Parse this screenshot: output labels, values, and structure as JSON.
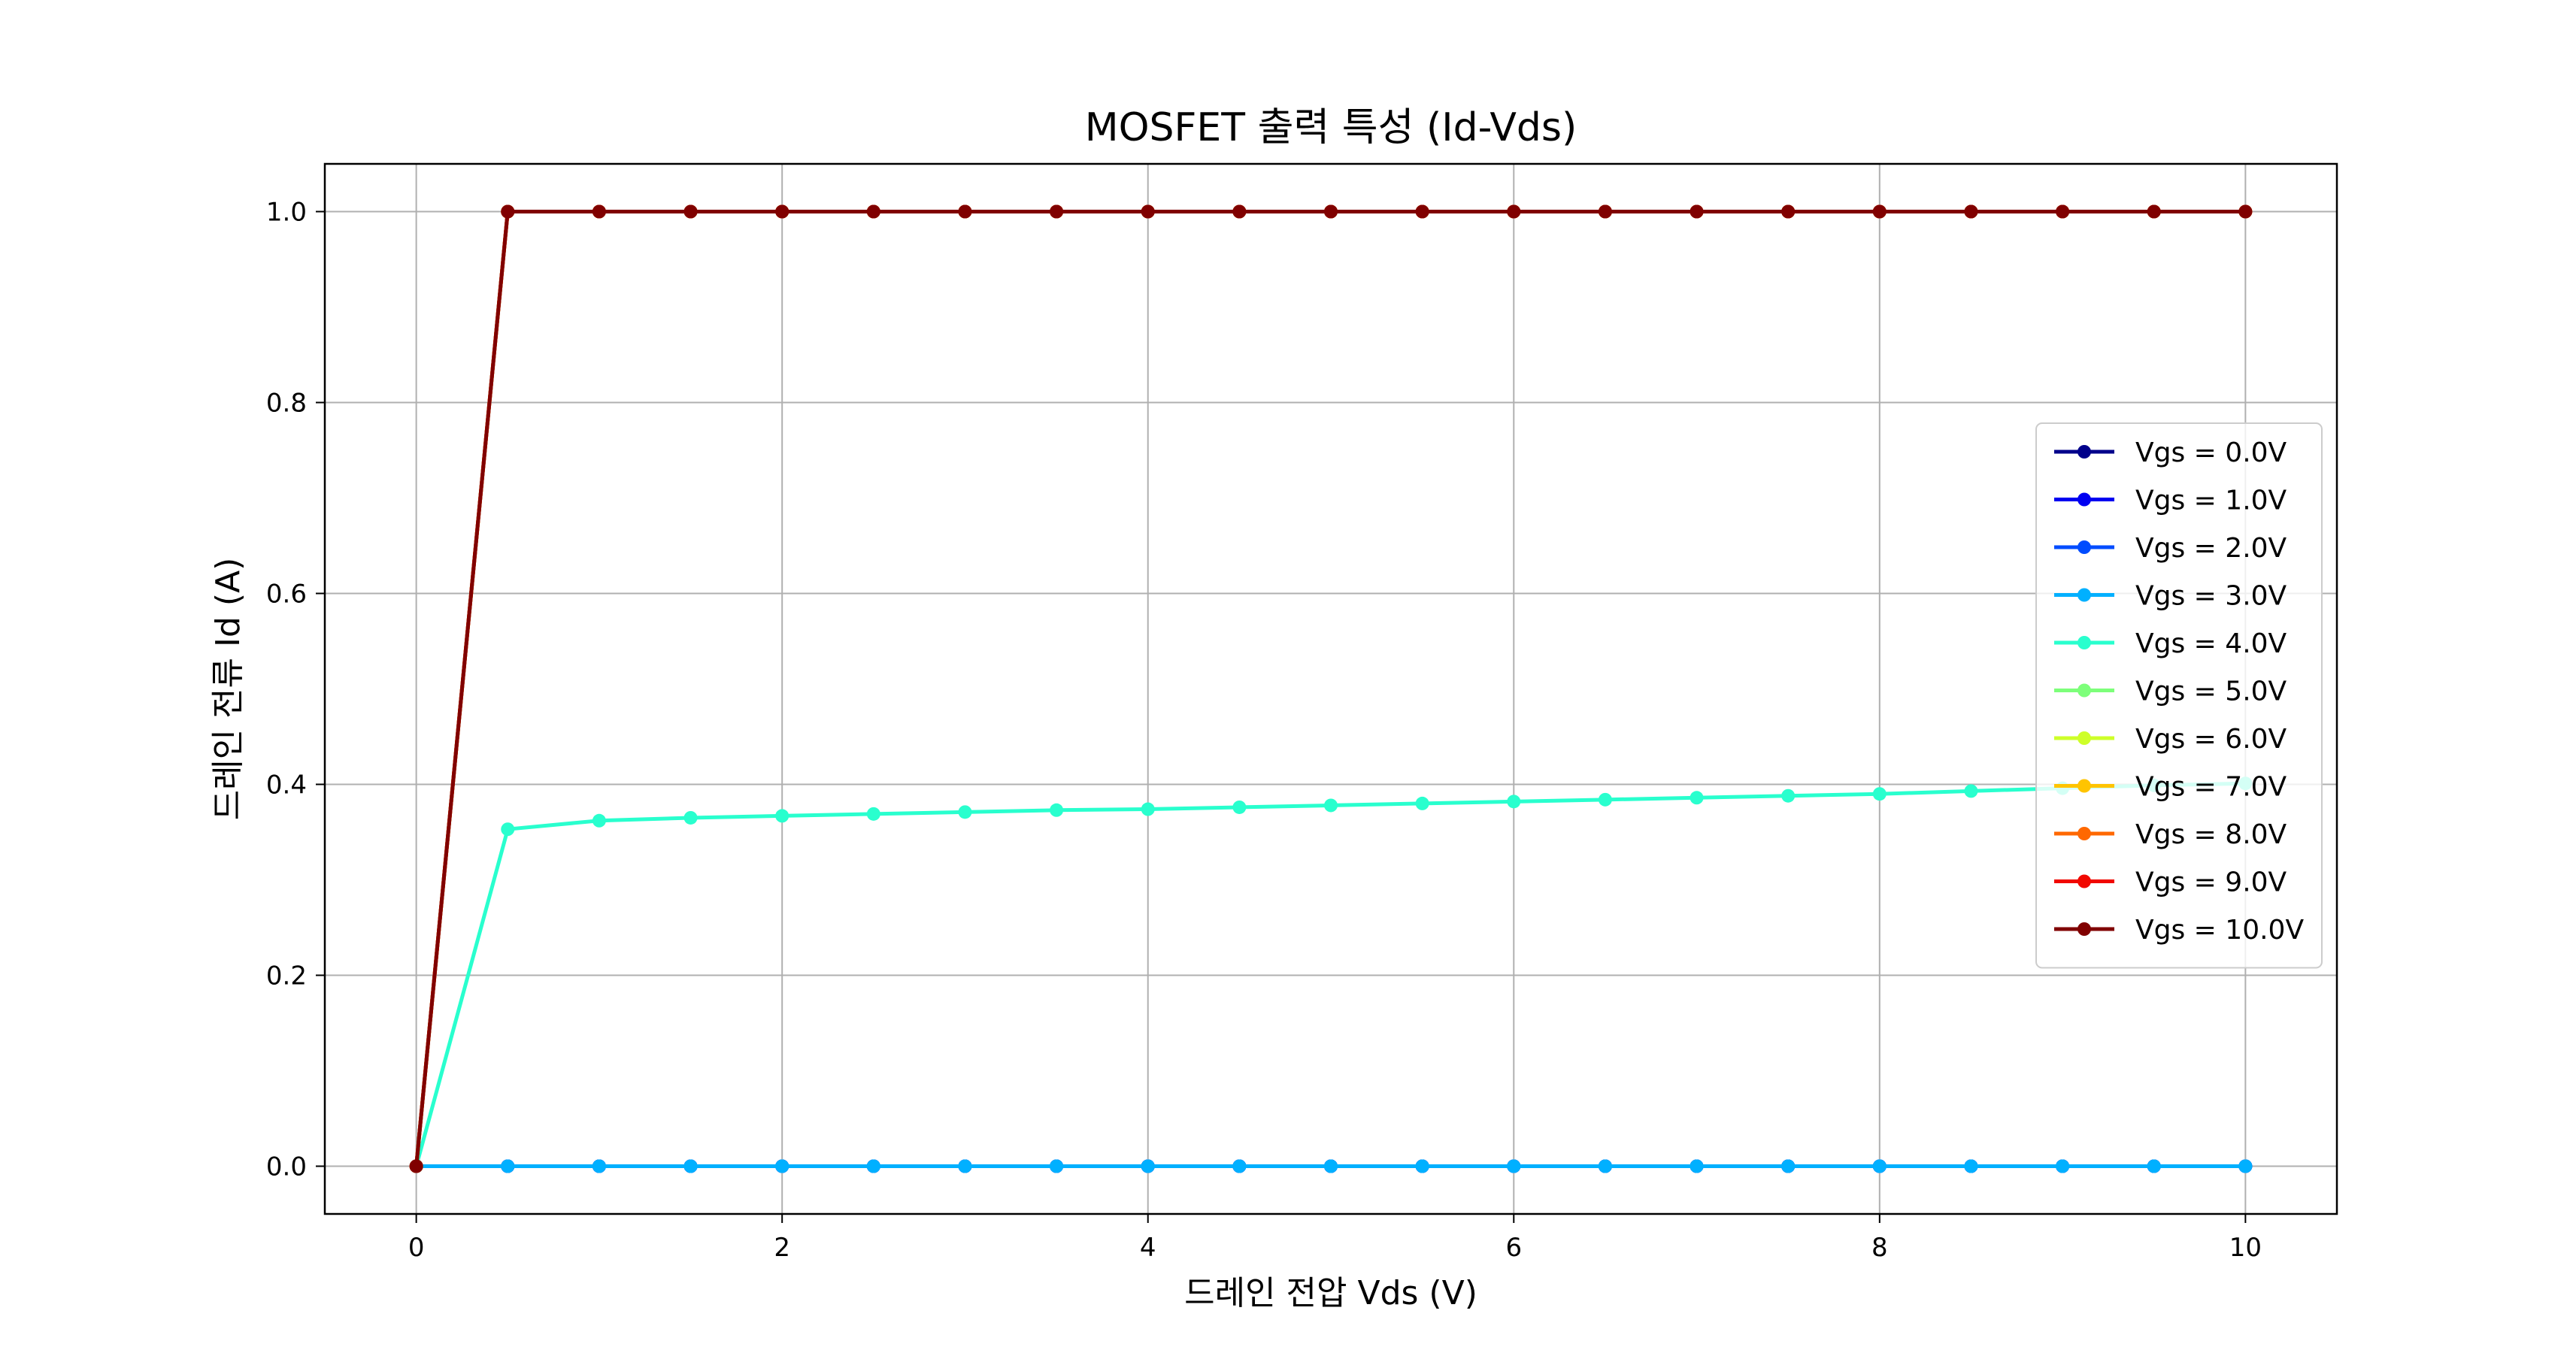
{
  "chart_data": {
    "type": "line",
    "title": "MOSFET 출력 특성 (Id-Vds)",
    "xlabel": "드레인 전압 Vds (V)",
    "ylabel": "드레인 전류 Id (A)",
    "xlim": [
      -0.5,
      10.5
    ],
    "ylim": [
      -0.05,
      1.05
    ],
    "xticks": [
      0,
      2,
      4,
      6,
      8,
      10
    ],
    "yticks": [
      0.0,
      0.2,
      0.4,
      0.6,
      0.8,
      1.0
    ],
    "xtick_labels": [
      "0",
      "2",
      "4",
      "6",
      "8",
      "10"
    ],
    "ytick_labels": [
      "0.0",
      "0.2",
      "0.4",
      "0.6",
      "0.8",
      "1.0"
    ],
    "grid": true,
    "legend_position": "center-right",
    "x": [
      0,
      0.5,
      1,
      1.5,
      2,
      2.5,
      3,
      3.5,
      4,
      4.5,
      5,
      5.5,
      6,
      6.5,
      7,
      7.5,
      8,
      8.5,
      9,
      9.5,
      10
    ],
    "series": [
      {
        "name": "Vgs = 0.0V",
        "color": "#00008b",
        "values": [
          0,
          0,
          0,
          0,
          0,
          0,
          0,
          0,
          0,
          0,
          0,
          0,
          0,
          0,
          0,
          0,
          0,
          0,
          0,
          0,
          0
        ]
      },
      {
        "name": "Vgs = 1.0V",
        "color": "#0000f1",
        "values": [
          0,
          0,
          0,
          0,
          0,
          0,
          0,
          0,
          0,
          0,
          0,
          0,
          0,
          0,
          0,
          0,
          0,
          0,
          0,
          0,
          0
        ]
      },
      {
        "name": "Vgs = 2.0V",
        "color": "#004cff",
        "values": [
          0,
          0,
          0,
          0,
          0,
          0,
          0,
          0,
          0,
          0,
          0,
          0,
          0,
          0,
          0,
          0,
          0,
          0,
          0,
          0,
          0
        ]
      },
      {
        "name": "Vgs = 3.0V",
        "color": "#00b0ff",
        "values": [
          0,
          0,
          0,
          0,
          0,
          0,
          0,
          0,
          0,
          0,
          0,
          0,
          0,
          0,
          0,
          0,
          0,
          0,
          0,
          0,
          0
        ]
      },
      {
        "name": "Vgs = 4.0V",
        "color": "#29ffce",
        "values": [
          0,
          0.353,
          0.362,
          0.365,
          0.367,
          0.369,
          0.371,
          0.373,
          0.374,
          0.376,
          0.378,
          0.38,
          0.382,
          0.384,
          0.386,
          0.388,
          0.39,
          0.393,
          0.396,
          0.399,
          0.401
        ]
      },
      {
        "name": "Vgs = 5.0V",
        "color": "#7dff7a",
        "values": [
          0,
          1,
          1,
          1,
          1,
          1,
          1,
          1,
          1,
          1,
          1,
          1,
          1,
          1,
          1,
          1,
          1,
          1,
          1,
          1,
          1
        ]
      },
      {
        "name": "Vgs = 6.0V",
        "color": "#ceff29",
        "values": [
          0,
          1,
          1,
          1,
          1,
          1,
          1,
          1,
          1,
          1,
          1,
          1,
          1,
          1,
          1,
          1,
          1,
          1,
          1,
          1,
          1
        ]
      },
      {
        "name": "Vgs = 7.0V",
        "color": "#ffc400",
        "values": [
          0,
          1,
          1,
          1,
          1,
          1,
          1,
          1,
          1,
          1,
          1,
          1,
          1,
          1,
          1,
          1,
          1,
          1,
          1,
          1,
          1
        ]
      },
      {
        "name": "Vgs = 8.0V",
        "color": "#ff6800",
        "values": [
          0,
          1,
          1,
          1,
          1,
          1,
          1,
          1,
          1,
          1,
          1,
          1,
          1,
          1,
          1,
          1,
          1,
          1,
          1,
          1,
          1
        ]
      },
      {
        "name": "Vgs = 9.0V",
        "color": "#f10800",
        "values": [
          0,
          1,
          1,
          1,
          1,
          1,
          1,
          1,
          1,
          1,
          1,
          1,
          1,
          1,
          1,
          1,
          1,
          1,
          1,
          1,
          1
        ]
      },
      {
        "name": "Vgs = 10.0V",
        "color": "#800000",
        "values": [
          0,
          1,
          1,
          1,
          1,
          1,
          1,
          1,
          1,
          1,
          1,
          1,
          1,
          1,
          1,
          1,
          1,
          1,
          1,
          1,
          1
        ]
      }
    ]
  }
}
